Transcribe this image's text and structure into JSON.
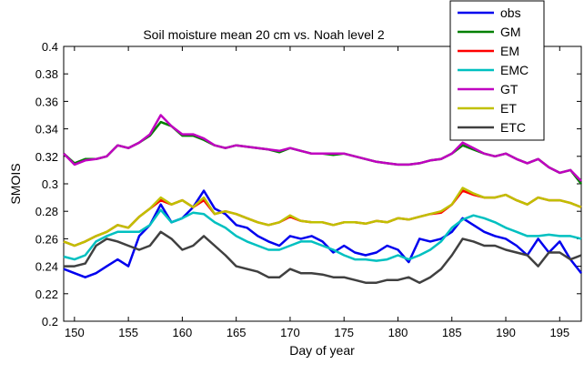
{
  "chart_data": {
    "type": "line",
    "title": "Soil moisture mean 20 cm vs. Noah level 2",
    "xlabel": "Day of year",
    "ylabel": "SMOIS",
    "xlim": [
      149,
      197
    ],
    "ylim": [
      0.2,
      0.4
    ],
    "xticks": [
      150,
      155,
      160,
      165,
      170,
      175,
      180,
      185,
      190,
      195
    ],
    "yticks": [
      0.2,
      0.22,
      0.24,
      0.26,
      0.28,
      0.3,
      0.32,
      0.34,
      0.36,
      0.38,
      0.4
    ],
    "grid": false,
    "legend_position": "top-right",
    "series": [
      {
        "name": "obs",
        "color": "#0000ee",
        "x": [
          149,
          150,
          151,
          152,
          153,
          154,
          155,
          156,
          157,
          158,
          159,
          160,
          161,
          162,
          163,
          164,
          165,
          166,
          167,
          168,
          169,
          170,
          171,
          172,
          173,
          174,
          175,
          176,
          177,
          178,
          179,
          180,
          181,
          182,
          183,
          184,
          185,
          186,
          187,
          188,
          189,
          190,
          191,
          192,
          193,
          194,
          195,
          196,
          197
        ],
        "y": [
          0.238,
          0.235,
          0.232,
          0.235,
          0.24,
          0.245,
          0.24,
          0.262,
          0.27,
          0.285,
          0.272,
          0.275,
          0.283,
          0.295,
          0.282,
          0.278,
          0.27,
          0.268,
          0.262,
          0.258,
          0.255,
          0.262,
          0.26,
          0.262,
          0.258,
          0.25,
          0.255,
          0.25,
          0.248,
          0.25,
          0.255,
          0.252,
          0.243,
          0.26,
          0.258,
          0.26,
          0.265,
          0.275,
          0.27,
          0.265,
          0.262,
          0.26,
          0.255,
          0.248,
          0.26,
          0.25,
          0.258,
          0.245,
          0.235
        ]
      },
      {
        "name": "GM",
        "color": "#008000",
        "x": [
          149,
          150,
          151,
          152,
          153,
          154,
          155,
          156,
          157,
          158,
          159,
          160,
          161,
          162,
          163,
          164,
          165,
          166,
          167,
          168,
          169,
          170,
          171,
          172,
          173,
          174,
          175,
          176,
          177,
          178,
          179,
          180,
          181,
          182,
          183,
          184,
          185,
          186,
          187,
          188,
          189,
          190,
          191,
          192,
          193,
          194,
          195,
          196,
          197
        ],
        "y": [
          0.322,
          0.315,
          0.318,
          0.318,
          0.32,
          0.328,
          0.326,
          0.33,
          0.335,
          0.345,
          0.342,
          0.335,
          0.335,
          0.332,
          0.328,
          0.326,
          0.328,
          0.327,
          0.326,
          0.325,
          0.323,
          0.326,
          0.324,
          0.322,
          0.322,
          0.321,
          0.322,
          0.32,
          0.318,
          0.316,
          0.315,
          0.314,
          0.314,
          0.315,
          0.317,
          0.318,
          0.322,
          0.328,
          0.325,
          0.322,
          0.32,
          0.322,
          0.318,
          0.315,
          0.318,
          0.312,
          0.308,
          0.31,
          0.3
        ]
      },
      {
        "name": "EM",
        "color": "#ff0000",
        "x": [
          149,
          150,
          151,
          152,
          153,
          154,
          155,
          156,
          157,
          158,
          159,
          160,
          161,
          162,
          163,
          164,
          165,
          166,
          167,
          168,
          169,
          170,
          171,
          172,
          173,
          174,
          175,
          176,
          177,
          178,
          179,
          180,
          181,
          182,
          183,
          184,
          185,
          186,
          187,
          188,
          189,
          190,
          191,
          192,
          193,
          194,
          195,
          196,
          197
        ],
        "y": [
          0.258,
          0.255,
          0.258,
          0.262,
          0.265,
          0.27,
          0.268,
          0.276,
          0.282,
          0.288,
          0.285,
          0.288,
          0.283,
          0.288,
          0.278,
          0.28,
          0.278,
          0.275,
          0.272,
          0.27,
          0.272,
          0.276,
          0.273,
          0.272,
          0.272,
          0.27,
          0.272,
          0.272,
          0.271,
          0.273,
          0.272,
          0.275,
          0.274,
          0.276,
          0.278,
          0.279,
          0.285,
          0.295,
          0.292,
          0.29,
          0.29,
          0.292,
          0.288,
          0.285,
          0.29,
          0.288,
          0.288,
          0.286,
          0.283
        ]
      },
      {
        "name": "EMC",
        "color": "#00c0c0",
        "x": [
          149,
          150,
          151,
          152,
          153,
          154,
          155,
          156,
          157,
          158,
          159,
          160,
          161,
          162,
          163,
          164,
          165,
          166,
          167,
          168,
          169,
          170,
          171,
          172,
          173,
          174,
          175,
          176,
          177,
          178,
          179,
          180,
          181,
          182,
          183,
          184,
          185,
          186,
          187,
          188,
          189,
          190,
          191,
          192,
          193,
          194,
          195,
          196,
          197
        ],
        "y": [
          0.247,
          0.245,
          0.248,
          0.258,
          0.262,
          0.265,
          0.265,
          0.265,
          0.27,
          0.281,
          0.272,
          0.275,
          0.279,
          0.278,
          0.272,
          0.268,
          0.262,
          0.258,
          0.255,
          0.252,
          0.252,
          0.255,
          0.258,
          0.258,
          0.255,
          0.252,
          0.248,
          0.245,
          0.245,
          0.244,
          0.245,
          0.248,
          0.245,
          0.248,
          0.252,
          0.258,
          0.268,
          0.274,
          0.277,
          0.275,
          0.272,
          0.268,
          0.265,
          0.262,
          0.262,
          0.263,
          0.262,
          0.262,
          0.26
        ]
      },
      {
        "name": "GT",
        "color": "#c000c0",
        "x": [
          149,
          150,
          151,
          152,
          153,
          154,
          155,
          156,
          157,
          158,
          159,
          160,
          161,
          162,
          163,
          164,
          165,
          166,
          167,
          168,
          169,
          170,
          171,
          172,
          173,
          174,
          175,
          176,
          177,
          178,
          179,
          180,
          181,
          182,
          183,
          184,
          185,
          186,
          187,
          188,
          189,
          190,
          191,
          192,
          193,
          194,
          195,
          196,
          197
        ],
        "y": [
          0.322,
          0.314,
          0.317,
          0.318,
          0.32,
          0.328,
          0.326,
          0.33,
          0.336,
          0.35,
          0.342,
          0.336,
          0.336,
          0.333,
          0.328,
          0.326,
          0.328,
          0.327,
          0.326,
          0.325,
          0.324,
          0.326,
          0.324,
          0.322,
          0.322,
          0.322,
          0.322,
          0.32,
          0.318,
          0.316,
          0.315,
          0.314,
          0.314,
          0.315,
          0.317,
          0.318,
          0.322,
          0.33,
          0.326,
          0.322,
          0.32,
          0.322,
          0.318,
          0.315,
          0.318,
          0.312,
          0.308,
          0.31,
          0.302
        ]
      },
      {
        "name": "ET",
        "color": "#c0c000",
        "x": [
          149,
          150,
          151,
          152,
          153,
          154,
          155,
          156,
          157,
          158,
          159,
          160,
          161,
          162,
          163,
          164,
          165,
          166,
          167,
          168,
          169,
          170,
          171,
          172,
          173,
          174,
          175,
          176,
          177,
          178,
          179,
          180,
          181,
          182,
          183,
          184,
          185,
          186,
          187,
          188,
          189,
          190,
          191,
          192,
          193,
          194,
          195,
          196,
          197
        ],
        "y": [
          0.258,
          0.255,
          0.258,
          0.262,
          0.265,
          0.27,
          0.268,
          0.276,
          0.282,
          0.29,
          0.285,
          0.288,
          0.283,
          0.29,
          0.278,
          0.28,
          0.278,
          0.275,
          0.272,
          0.27,
          0.272,
          0.277,
          0.273,
          0.272,
          0.272,
          0.27,
          0.272,
          0.272,
          0.271,
          0.273,
          0.272,
          0.275,
          0.274,
          0.276,
          0.278,
          0.28,
          0.285,
          0.297,
          0.293,
          0.29,
          0.29,
          0.292,
          0.288,
          0.285,
          0.29,
          0.288,
          0.288,
          0.286,
          0.283
        ]
      },
      {
        "name": "ETC",
        "color": "#404040",
        "x": [
          149,
          150,
          151,
          152,
          153,
          154,
          155,
          156,
          157,
          158,
          159,
          160,
          161,
          162,
          163,
          164,
          165,
          166,
          167,
          168,
          169,
          170,
          171,
          172,
          173,
          174,
          175,
          176,
          177,
          178,
          179,
          180,
          181,
          182,
          183,
          184,
          185,
          186,
          187,
          188,
          189,
          190,
          191,
          192,
          193,
          194,
          195,
          196,
          197
        ],
        "y": [
          0.24,
          0.24,
          0.242,
          0.255,
          0.26,
          0.258,
          0.255,
          0.252,
          0.255,
          0.265,
          0.26,
          0.252,
          0.255,
          0.262,
          0.255,
          0.248,
          0.24,
          0.238,
          0.236,
          0.232,
          0.232,
          0.238,
          0.235,
          0.235,
          0.234,
          0.232,
          0.232,
          0.23,
          0.228,
          0.228,
          0.23,
          0.23,
          0.232,
          0.228,
          0.232,
          0.238,
          0.248,
          0.26,
          0.258,
          0.255,
          0.255,
          0.252,
          0.25,
          0.248,
          0.24,
          0.25,
          0.25,
          0.245,
          0.248
        ]
      }
    ]
  }
}
